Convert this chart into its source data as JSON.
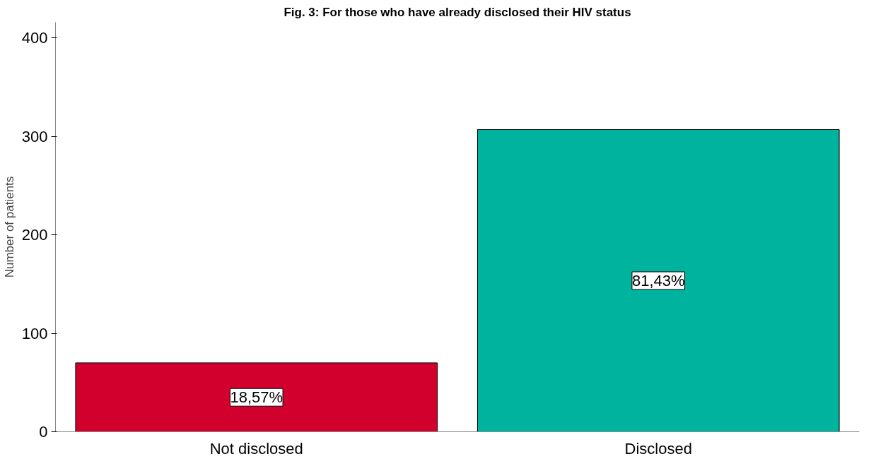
{
  "chart_data": {
    "type": "bar",
    "title": "Fig. 3: For those who have already disclosed their HIV status",
    "ylabel": "Number of patients",
    "categories": [
      "Not disclosed",
      "Disclosed"
    ],
    "values": [
      70,
      307
    ],
    "colors": [
      "#d2002d",
      "#00b39e"
    ],
    "annotations": [
      "18,57%",
      "81,43%"
    ],
    "ylim": [
      0,
      416
    ],
    "yticks": [
      0,
      100,
      200,
      300,
      400
    ],
    "grid": false
  }
}
